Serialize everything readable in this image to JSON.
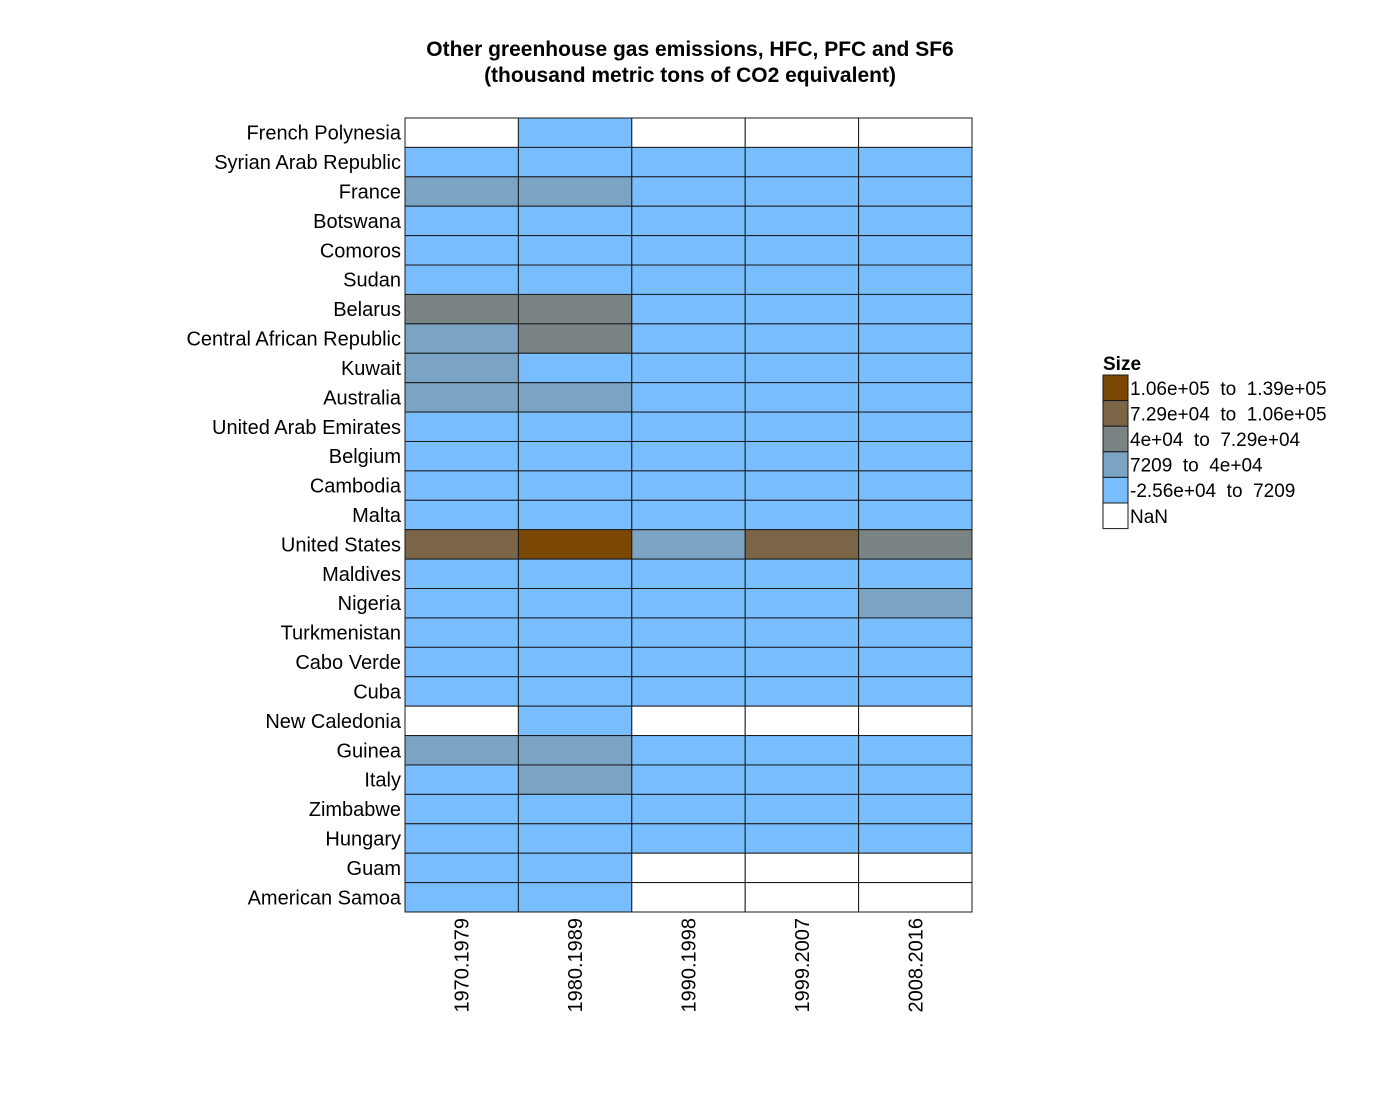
{
  "chart_data": {
    "type": "heatmap",
    "title_lines": [
      "Other greenhouse gas emissions, HFC, PFC and SF6",
      "(thousand metric tons of CO2 equivalent)"
    ],
    "xlabel": "",
    "ylabel": "",
    "x_categories": [
      "1970.1979",
      "1980.1989",
      "1990.1998",
      "1999.2007",
      "2008.2016"
    ],
    "y_categories": [
      "French Polynesia",
      "Syrian Arab Republic",
      "France",
      "Botswana",
      "Comoros",
      "Sudan",
      "Belarus",
      "Central African Republic",
      "Kuwait",
      "Australia",
      "United Arab Emirates",
      "Belgium",
      "Cambodia",
      "Malta",
      "United States",
      "Maldives",
      "Nigeria",
      "Turkmenistan",
      "Cabo Verde",
      "Cuba",
      "New Caledonia",
      "Guinea",
      "Italy",
      "Zimbabwe",
      "Hungary",
      "Guam",
      "American Samoa"
    ],
    "bins": [
      {
        "label": "1.06e+05  to  1.39e+05",
        "color": "#7a4705"
      },
      {
        "label": "7.29e+04  to  1.06e+05",
        "color": "#7a6647"
      },
      {
        "label": "4e+04  to  7.29e+04",
        "color": "#7a8484"
      },
      {
        "label": "7209  to  4e+04",
        "color": "#7aa3c4"
      },
      {
        "label": "-2.56e+04  to  7209",
        "color": "#78beff"
      },
      {
        "label": "NaN",
        "color": "#ffffff"
      }
    ],
    "cell_bins": [
      [
        5,
        4,
        5,
        5,
        5
      ],
      [
        4,
        4,
        4,
        4,
        4
      ],
      [
        3,
        3,
        4,
        4,
        4
      ],
      [
        4,
        4,
        4,
        4,
        4
      ],
      [
        4,
        4,
        4,
        4,
        4
      ],
      [
        4,
        4,
        4,
        4,
        4
      ],
      [
        2,
        2,
        4,
        4,
        4
      ],
      [
        3,
        2,
        4,
        4,
        4
      ],
      [
        3,
        4,
        4,
        4,
        4
      ],
      [
        3,
        3,
        4,
        4,
        4
      ],
      [
        4,
        4,
        4,
        4,
        4
      ],
      [
        4,
        4,
        4,
        4,
        4
      ],
      [
        4,
        4,
        4,
        4,
        4
      ],
      [
        4,
        4,
        4,
        4,
        4
      ],
      [
        1,
        0,
        3,
        1,
        2
      ],
      [
        4,
        4,
        4,
        4,
        4
      ],
      [
        4,
        4,
        4,
        4,
        3
      ],
      [
        4,
        4,
        4,
        4,
        4
      ],
      [
        4,
        4,
        4,
        4,
        4
      ],
      [
        4,
        4,
        4,
        4,
        4
      ],
      [
        5,
        4,
        5,
        5,
        5
      ],
      [
        3,
        3,
        4,
        4,
        4
      ],
      [
        4,
        3,
        4,
        4,
        4
      ],
      [
        4,
        4,
        4,
        4,
        4
      ],
      [
        4,
        4,
        4,
        4,
        4
      ],
      [
        4,
        4,
        5,
        5,
        5
      ],
      [
        4,
        4,
        5,
        5,
        5
      ]
    ],
    "legend": {
      "title": "Size",
      "position": "right"
    },
    "grid": false
  }
}
